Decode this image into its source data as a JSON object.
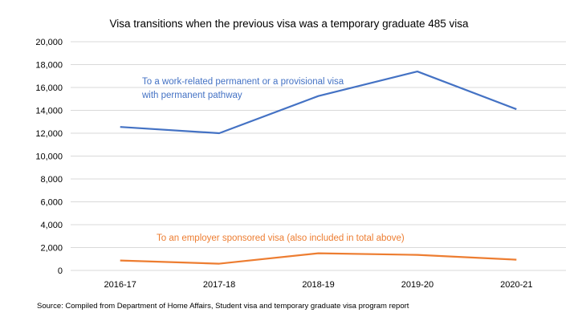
{
  "chart_data": {
    "type": "line",
    "title": "Visa transitions when the previous visa was a temporary graduate 485 visa",
    "xlabel": "",
    "ylabel": "",
    "categories": [
      "2016-17",
      "2017-18",
      "2018-19",
      "2019-20",
      "2020-21"
    ],
    "ylim": [
      0,
      20000
    ],
    "yticks": [
      0,
      2000,
      4000,
      6000,
      8000,
      10000,
      12000,
      14000,
      16000,
      18000,
      20000
    ],
    "ytick_labels": [
      "0",
      "2,000",
      "4,000",
      "6,000",
      "8,000",
      "10,000",
      "12,000",
      "14,000",
      "16,000",
      "18,000",
      "20,000"
    ],
    "grid": true,
    "series": [
      {
        "name": "To a work-related permanent or a provisional visa with permanent pathway",
        "label_lines": [
          "To a work-related permanent or a provisional visa",
          "with permanent pathway"
        ],
        "color": "#4472c4",
        "values": [
          12550,
          12000,
          15250,
          17400,
          14100
        ]
      },
      {
        "name": "To an employer sponsored visa (also included in total above)",
        "label_lines": [
          "To an employer sponsored visa (also included in total above)"
        ],
        "color": "#ed7d31",
        "values": [
          870,
          590,
          1500,
          1360,
          940
        ]
      }
    ]
  },
  "source": "Source: Compiled from Department of Home Affairs, Student visa and temporary graduate visa program report"
}
